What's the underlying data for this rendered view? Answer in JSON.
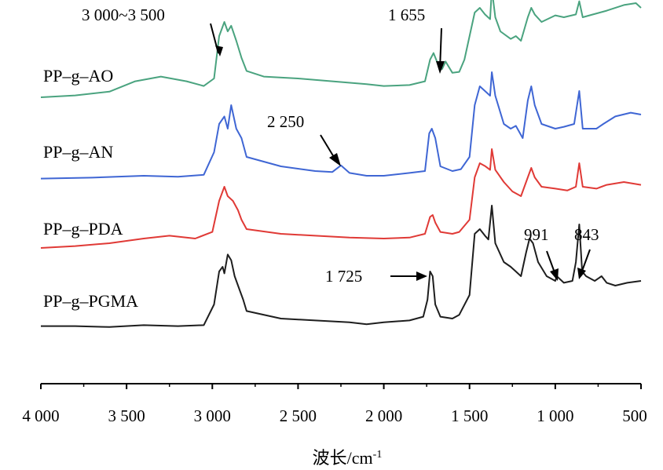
{
  "chart_data": {
    "type": "line",
    "xlabel": "波长/cm",
    "xlabel_superscript": "-1",
    "x_reversed": true,
    "xlim": [
      4000,
      500
    ],
    "x_ticks": [
      {
        "value": 4000,
        "label": "4 000"
      },
      {
        "value": 3500,
        "label": "3 500"
      },
      {
        "value": 3000,
        "label": "3 000"
      },
      {
        "value": 2500,
        "label": "2 500"
      },
      {
        "value": 2000,
        "label": "2 000"
      },
      {
        "value": 1500,
        "label": "1 500"
      },
      {
        "value": 1000,
        "label": "1 000"
      },
      {
        "value": 500,
        "label": "500"
      }
    ],
    "grid": false,
    "y_axis_visible": false,
    "series": [
      {
        "name": "PP–g–AO",
        "color": "#4aa37f",
        "points": [
          [
            4000,
            0.1
          ],
          [
            3800,
            0.12
          ],
          [
            3600,
            0.16
          ],
          [
            3450,
            0.27
          ],
          [
            3300,
            0.32
          ],
          [
            3150,
            0.27
          ],
          [
            3050,
            0.22
          ],
          [
            2990,
            0.3
          ],
          [
            2960,
            0.75
          ],
          [
            2930,
            0.9
          ],
          [
            2910,
            0.8
          ],
          [
            2890,
            0.86
          ],
          [
            2860,
            0.7
          ],
          [
            2830,
            0.52
          ],
          [
            2800,
            0.38
          ],
          [
            2700,
            0.32
          ],
          [
            2500,
            0.3
          ],
          [
            2300,
            0.27
          ],
          [
            2100,
            0.24
          ],
          [
            2000,
            0.22
          ],
          [
            1850,
            0.23
          ],
          [
            1760,
            0.27
          ],
          [
            1730,
            0.5
          ],
          [
            1710,
            0.57
          ],
          [
            1690,
            0.48
          ],
          [
            1660,
            0.4
          ],
          [
            1640,
            0.48
          ],
          [
            1600,
            0.36
          ],
          [
            1560,
            0.37
          ],
          [
            1530,
            0.5
          ],
          [
            1470,
            1.0
          ],
          [
            1440,
            1.05
          ],
          [
            1410,
            0.98
          ],
          [
            1380,
            0.93
          ],
          [
            1370,
            1.25
          ],
          [
            1350,
            0.95
          ],
          [
            1320,
            0.8
          ],
          [
            1260,
            0.72
          ],
          [
            1230,
            0.75
          ],
          [
            1200,
            0.7
          ],
          [
            1160,
            0.95
          ],
          [
            1140,
            1.05
          ],
          [
            1120,
            0.98
          ],
          [
            1080,
            0.9
          ],
          [
            1000,
            0.97
          ],
          [
            950,
            0.95
          ],
          [
            880,
            0.98
          ],
          [
            860,
            1.12
          ],
          [
            840,
            0.95
          ],
          [
            780,
            0.98
          ],
          [
            700,
            1.02
          ],
          [
            600,
            1.08
          ],
          [
            530,
            1.1
          ],
          [
            500,
            1.05
          ]
        ]
      },
      {
        "name": "PP–g–AN",
        "color": "#3f66d4",
        "points": [
          [
            4000,
            0.02
          ],
          [
            3700,
            0.03
          ],
          [
            3400,
            0.05
          ],
          [
            3200,
            0.04
          ],
          [
            3050,
            0.06
          ],
          [
            2990,
            0.3
          ],
          [
            2960,
            0.6
          ],
          [
            2930,
            0.68
          ],
          [
            2910,
            0.55
          ],
          [
            2890,
            0.8
          ],
          [
            2860,
            0.55
          ],
          [
            2830,
            0.45
          ],
          [
            2800,
            0.25
          ],
          [
            2600,
            0.15
          ],
          [
            2400,
            0.1
          ],
          [
            2300,
            0.09
          ],
          [
            2250,
            0.16
          ],
          [
            2200,
            0.08
          ],
          [
            2100,
            0.05
          ],
          [
            2000,
            0.05
          ],
          [
            1850,
            0.08
          ],
          [
            1760,
            0.1
          ],
          [
            1735,
            0.5
          ],
          [
            1720,
            0.55
          ],
          [
            1700,
            0.45
          ],
          [
            1670,
            0.15
          ],
          [
            1600,
            0.1
          ],
          [
            1550,
            0.12
          ],
          [
            1500,
            0.25
          ],
          [
            1470,
            0.8
          ],
          [
            1440,
            1.0
          ],
          [
            1410,
            0.95
          ],
          [
            1380,
            0.9
          ],
          [
            1370,
            1.15
          ],
          [
            1350,
            0.9
          ],
          [
            1300,
            0.6
          ],
          [
            1260,
            0.55
          ],
          [
            1230,
            0.58
          ],
          [
            1190,
            0.45
          ],
          [
            1160,
            0.85
          ],
          [
            1140,
            1.0
          ],
          [
            1120,
            0.8
          ],
          [
            1080,
            0.6
          ],
          [
            1000,
            0.55
          ],
          [
            950,
            0.57
          ],
          [
            890,
            0.6
          ],
          [
            860,
            0.95
          ],
          [
            840,
            0.55
          ],
          [
            760,
            0.55
          ],
          [
            720,
            0.6
          ],
          [
            650,
            0.68
          ],
          [
            560,
            0.72
          ],
          [
            500,
            0.7
          ]
        ]
      },
      {
        "name": "PP–g–PDA",
        "color": "#e03a36",
        "points": [
          [
            4000,
            0.05
          ],
          [
            3800,
            0.07
          ],
          [
            3600,
            0.1
          ],
          [
            3400,
            0.15
          ],
          [
            3250,
            0.18
          ],
          [
            3100,
            0.15
          ],
          [
            3000,
            0.22
          ],
          [
            2960,
            0.55
          ],
          [
            2930,
            0.7
          ],
          [
            2910,
            0.6
          ],
          [
            2880,
            0.55
          ],
          [
            2850,
            0.45
          ],
          [
            2830,
            0.35
          ],
          [
            2800,
            0.25
          ],
          [
            2600,
            0.2
          ],
          [
            2400,
            0.18
          ],
          [
            2200,
            0.16
          ],
          [
            2000,
            0.15
          ],
          [
            1850,
            0.16
          ],
          [
            1760,
            0.2
          ],
          [
            1730,
            0.38
          ],
          [
            1715,
            0.4
          ],
          [
            1700,
            0.32
          ],
          [
            1670,
            0.22
          ],
          [
            1600,
            0.2
          ],
          [
            1560,
            0.22
          ],
          [
            1500,
            0.35
          ],
          [
            1470,
            0.8
          ],
          [
            1440,
            0.95
          ],
          [
            1410,
            0.92
          ],
          [
            1380,
            0.88
          ],
          [
            1370,
            1.1
          ],
          [
            1350,
            0.88
          ],
          [
            1300,
            0.75
          ],
          [
            1250,
            0.65
          ],
          [
            1200,
            0.6
          ],
          [
            1160,
            0.8
          ],
          [
            1140,
            0.9
          ],
          [
            1120,
            0.8
          ],
          [
            1080,
            0.7
          ],
          [
            1000,
            0.68
          ],
          [
            930,
            0.66
          ],
          [
            880,
            0.7
          ],
          [
            860,
            0.95
          ],
          [
            840,
            0.7
          ],
          [
            760,
            0.68
          ],
          [
            700,
            0.72
          ],
          [
            600,
            0.75
          ],
          [
            500,
            0.72
          ]
        ]
      },
      {
        "name": "PP–g–PGMA",
        "color": "#1e1e1e",
        "points": [
          [
            4000,
            0.02
          ],
          [
            3800,
            0.02
          ],
          [
            3600,
            0.01
          ],
          [
            3400,
            0.03
          ],
          [
            3200,
            0.02
          ],
          [
            3050,
            0.03
          ],
          [
            2990,
            0.25
          ],
          [
            2960,
            0.6
          ],
          [
            2940,
            0.65
          ],
          [
            2930,
            0.58
          ],
          [
            2910,
            0.78
          ],
          [
            2890,
            0.72
          ],
          [
            2870,
            0.55
          ],
          [
            2840,
            0.4
          ],
          [
            2820,
            0.3
          ],
          [
            2800,
            0.18
          ],
          [
            2600,
            0.1
          ],
          [
            2400,
            0.08
          ],
          [
            2200,
            0.06
          ],
          [
            2100,
            0.04
          ],
          [
            2000,
            0.06
          ],
          [
            1850,
            0.08
          ],
          [
            1770,
            0.12
          ],
          [
            1745,
            0.3
          ],
          [
            1730,
            0.6
          ],
          [
            1715,
            0.55
          ],
          [
            1700,
            0.25
          ],
          [
            1670,
            0.12
          ],
          [
            1600,
            0.1
          ],
          [
            1560,
            0.14
          ],
          [
            1500,
            0.35
          ],
          [
            1470,
            1.0
          ],
          [
            1440,
            1.05
          ],
          [
            1410,
            0.98
          ],
          [
            1390,
            0.94
          ],
          [
            1370,
            1.3
          ],
          [
            1350,
            0.9
          ],
          [
            1300,
            0.7
          ],
          [
            1260,
            0.65
          ],
          [
            1230,
            0.6
          ],
          [
            1200,
            0.55
          ],
          [
            1170,
            0.8
          ],
          [
            1150,
            0.95
          ],
          [
            1130,
            0.9
          ],
          [
            1100,
            0.7
          ],
          [
            1050,
            0.55
          ],
          [
            1000,
            0.5
          ],
          [
            991,
            0.55
          ],
          [
            950,
            0.48
          ],
          [
            900,
            0.5
          ],
          [
            880,
            0.7
          ],
          [
            860,
            1.1
          ],
          [
            843,
            0.6
          ],
          [
            820,
            0.55
          ],
          [
            770,
            0.5
          ],
          [
            730,
            0.55
          ],
          [
            700,
            0.48
          ],
          [
            650,
            0.45
          ],
          [
            580,
            0.48
          ],
          [
            500,
            0.5
          ]
        ]
      }
    ],
    "annotations": [
      {
        "text": "3 000~3 500"
      },
      {
        "text": "1 655"
      },
      {
        "text": "2 250"
      },
      {
        "text": "1 725"
      },
      {
        "text": "991"
      },
      {
        "text": "843"
      }
    ]
  }
}
